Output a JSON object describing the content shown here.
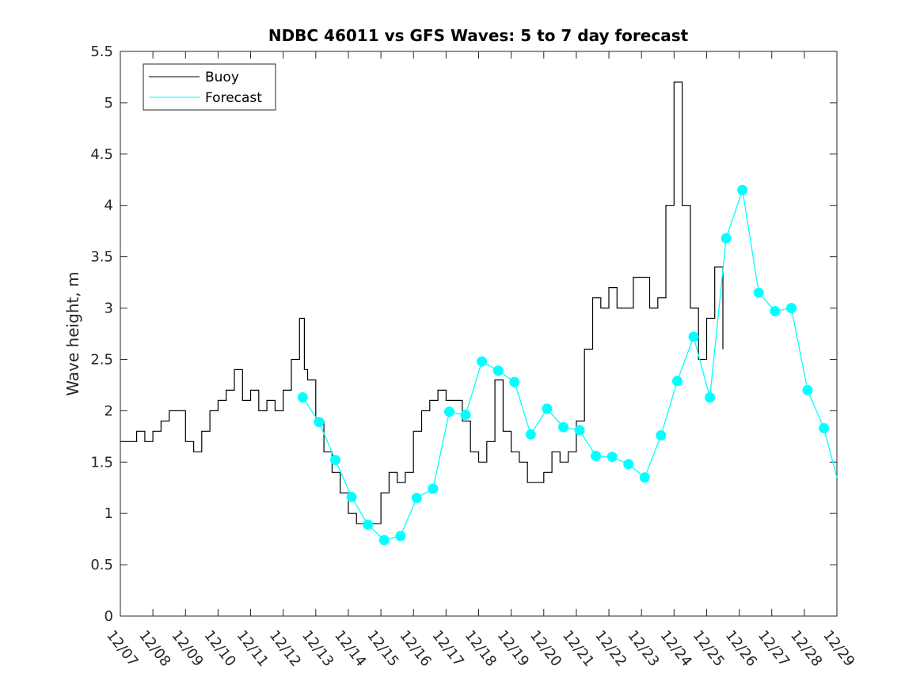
{
  "chart_data": {
    "type": "line",
    "title": "NDBC 46011 vs GFS Waves: 5 to 7 day forecast",
    "xlabel": "",
    "ylabel": "Wave height, m",
    "xlim": [
      0,
      22
    ],
    "ylim": [
      0,
      5.5
    ],
    "y_ticks": [
      "0",
      "0.5",
      "1",
      "1.5",
      "2",
      "2.5",
      "3",
      "3.5",
      "4",
      "4.5",
      "5",
      "5.5"
    ],
    "x_tick_labels": [
      "12/07",
      "12/08",
      "12/09",
      "12/10",
      "12/11",
      "12/12",
      "12/13",
      "12/14",
      "12/15",
      "12/16",
      "12/17",
      "12/18",
      "12/19",
      "12/20",
      "12/21",
      "12/22",
      "12/23",
      "12/24",
      "12/25",
      "12/26",
      "12/27",
      "12/28",
      "12/29"
    ],
    "legend": {
      "position": "top-left",
      "entries": [
        "Buoy",
        "Forecast"
      ]
    },
    "colors": {
      "buoy": "#000000",
      "forecast": "#00ffff",
      "axis": "#262626"
    },
    "series": [
      {
        "name": "Buoy",
        "x": [
          0,
          0.25,
          0.5,
          0.75,
          1,
          1.25,
          1.5,
          1.75,
          2,
          2.25,
          2.5,
          2.75,
          3,
          3.25,
          3.5,
          3.75,
          4,
          4.25,
          4.5,
          4.75,
          5,
          5.25,
          5.5,
          5.65,
          5.75,
          6,
          6.25,
          6.5,
          6.75,
          7,
          7.25,
          7.5,
          7.75,
          8,
          8.25,
          8.5,
          8.75,
          9,
          9.25,
          9.5,
          9.75,
          10,
          10.25,
          10.5,
          10.75,
          11,
          11.25,
          11.5,
          11.75,
          12,
          12.25,
          12.5,
          12.75,
          13,
          13.25,
          13.5,
          13.75,
          14,
          14.25,
          14.5,
          14.75,
          15,
          15.25,
          15.5,
          15.75,
          16,
          16.25,
          16.5,
          16.75,
          17,
          17.25,
          17.5,
          17.75,
          18,
          18.25,
          18.5,
          18.75,
          19,
          19.25,
          19.5,
          19.75,
          20,
          20.25,
          20.5,
          20.75,
          21,
          21.25,
          21.5,
          21.75,
          22
        ],
        "y": [
          1.7,
          1.7,
          1.8,
          1.7,
          1.8,
          1.9,
          2.0,
          2.0,
          1.7,
          1.6,
          1.8,
          2.0,
          2.1,
          2.2,
          2.4,
          2.1,
          2.2,
          2.0,
          2.1,
          2.0,
          2.2,
          2.5,
          2.9,
          2.4,
          2.3,
          1.9,
          1.6,
          1.4,
          1.2,
          1.0,
          0.9,
          0.9,
          0.9,
          1.2,
          1.4,
          1.3,
          1.4,
          1.8,
          2.0,
          2.1,
          2.2,
          2.1,
          2.1,
          1.9,
          1.6,
          1.5,
          1.7,
          2.3,
          1.8,
          1.6,
          1.5,
          1.3,
          1.3,
          1.4,
          1.6,
          1.5,
          1.6,
          1.9,
          2.6,
          3.1,
          3.0,
          3.2,
          3.0,
          3.0,
          3.3,
          3.3,
          3.0,
          3.1,
          4.0,
          5.2,
          4.0,
          3.0,
          2.5,
          2.9,
          3.4,
          2.6,
          null,
          null,
          null,
          null,
          null,
          null,
          null,
          null,
          null,
          null,
          null,
          null,
          null,
          null
        ]
      },
      {
        "name": "Forecast",
        "x": [
          5.6,
          6.1,
          6.6,
          7.1,
          7.6,
          8.1,
          8.6,
          9.1,
          9.6,
          10.1,
          10.6,
          11.1,
          11.6,
          12.1,
          12.6,
          13.1,
          13.6,
          14.1,
          14.6,
          15.1,
          15.6,
          16.1,
          16.6,
          17.1,
          17.6,
          18.1,
          18.6,
          19.1,
          19.6,
          20.1,
          20.6,
          21.1,
          21.6,
          22
        ],
        "y": [
          2.13,
          1.89,
          1.52,
          1.16,
          0.89,
          0.74,
          0.78,
          1.15,
          1.24,
          1.99,
          1.96,
          2.48,
          2.39,
          2.28,
          1.77,
          2.02,
          1.84,
          1.81,
          1.56,
          1.55,
          1.48,
          1.35,
          1.76,
          2.29,
          2.72,
          2.13,
          3.68,
          4.15,
          3.15,
          2.97,
          3.0,
          2.2,
          1.83,
          1.35
        ]
      }
    ],
    "forecast_markers": {
      "x": [
        5.6,
        6.1,
        6.6,
        7.1,
        7.6,
        8.1,
        8.6,
        9.1,
        9.6,
        10.1,
        10.6,
        11.1,
        11.6,
        12.1,
        12.6,
        13.1,
        13.6,
        14.1,
        14.6,
        15.1,
        15.6,
        16.1,
        16.6,
        17.1,
        17.6,
        18.1,
        18.6,
        19.1,
        19.6,
        20.1,
        20.6,
        21.1,
        21.6
      ],
      "y": [
        2.13,
        1.89,
        1.52,
        1.16,
        0.89,
        0.74,
        0.78,
        1.15,
        1.24,
        1.99,
        1.96,
        2.48,
        2.39,
        2.28,
        1.77,
        2.02,
        1.84,
        1.81,
        1.56,
        1.55,
        1.48,
        1.35,
        1.76,
        2.29,
        2.72,
        2.13,
        3.68,
        4.15,
        3.15,
        2.97,
        3.0,
        2.2,
        1.83
      ]
    }
  }
}
